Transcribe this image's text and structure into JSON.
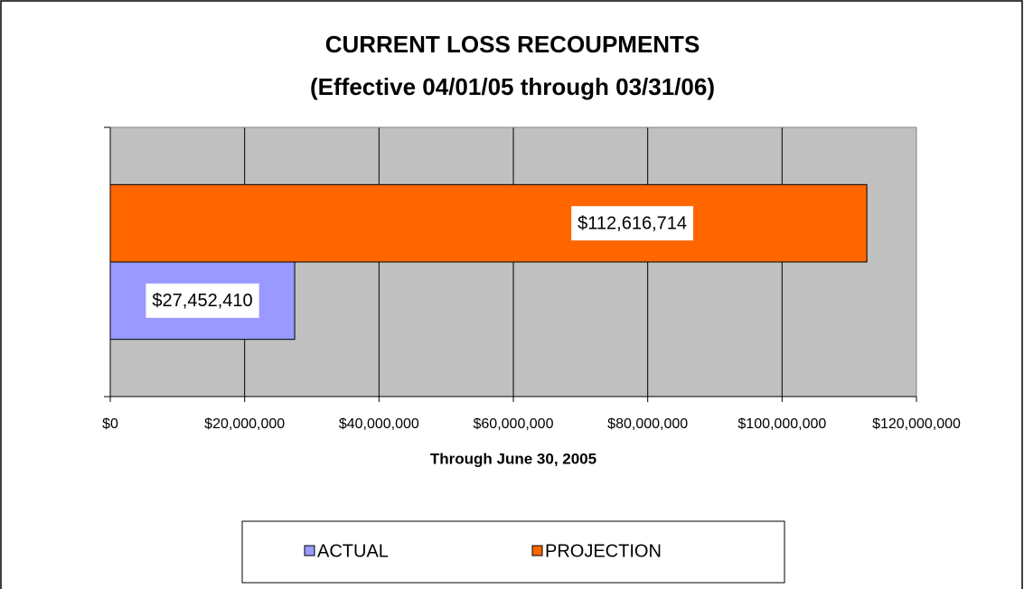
{
  "chart_data": {
    "type": "barh",
    "title": "CURRENT LOSS RECOUPMENTS",
    "subtitle": "(Effective 04/01/05 through 03/31/06)",
    "xlabel": "Through June 30, 2005",
    "categories": [
      null
    ],
    "series": [
      {
        "name": "ACTUAL",
        "color": "#9999ff",
        "values": [
          27452410
        ],
        "value_labels": [
          "$27,452,410"
        ]
      },
      {
        "name": "PROJECTION",
        "color": "#ff6600",
        "values": [
          112616714
        ],
        "value_labels": [
          "$112,616,714"
        ]
      }
    ],
    "xlim": [
      0,
      120000000
    ],
    "xticks": [
      {
        "value": 0,
        "label": "$0"
      },
      {
        "value": 20000000,
        "label": "$20,000,000"
      },
      {
        "value": 40000000,
        "label": "$40,000,000"
      },
      {
        "value": 60000000,
        "label": "$60,000,000"
      },
      {
        "value": 80000000,
        "label": "$80,000,000"
      },
      {
        "value": 100000000,
        "label": "$100,000,000"
      },
      {
        "value": 120000000,
        "label": "$120,000,000"
      }
    ],
    "grid": true,
    "legend": "bottom"
  }
}
